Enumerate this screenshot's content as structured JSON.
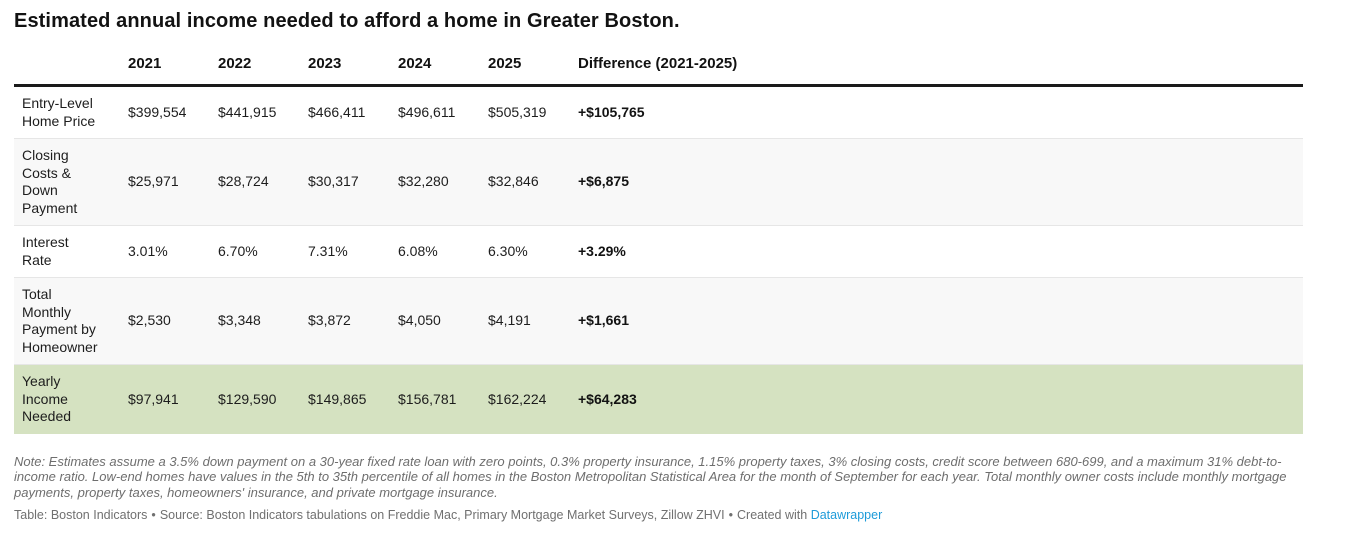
{
  "colors": {
    "highlight_green": "#d5e2c1",
    "row_alt_gray": "#f8f8f8",
    "header_rule_black": "#1a1a1a",
    "link_blue": "#1d9bd9",
    "note_gray": "#6e6e6e"
  },
  "chart_data": {
    "type": "table",
    "title": "Estimated annual income needed to afford a home in Greater Boston.",
    "columns": [
      "2021",
      "2022",
      "2023",
      "2024",
      "2025",
      "Difference (2021-2025)"
    ],
    "rows": [
      {
        "label": "Entry-Level Home Price",
        "values": [
          "$399,554",
          "$441,915",
          "$466,411",
          "$496,611",
          "$505,319",
          "+$105,765"
        ],
        "highlight": false
      },
      {
        "label": "Closing Costs & Down Payment",
        "values": [
          "$25,971",
          "$28,724",
          "$30,317",
          "$32,280",
          "$32,846",
          "+$6,875"
        ],
        "highlight": false
      },
      {
        "label": "Interest Rate",
        "values": [
          "3.01%",
          "6.70%",
          "7.31%",
          "6.08%",
          "6.30%",
          "+3.29%"
        ],
        "highlight": false
      },
      {
        "label": "Total Monthly Payment by Homeowner",
        "values": [
          "$2,530",
          "$3,348",
          "$3,872",
          "$4,050",
          "$4,191",
          "+$1,661"
        ],
        "highlight": false
      },
      {
        "label": "Yearly Income Needed",
        "values": [
          "$97,941",
          "$129,590",
          "$149,865",
          "$156,781",
          "$162,224",
          "+$64,283"
        ],
        "highlight": true
      }
    ]
  },
  "note": "Note: Estimates assume a 3.5% down payment on a 30-year fixed rate loan with zero points, 0.3% property insurance, 1.15% property taxes, 3% closing costs, credit score between 680-699, and a maximum 31% debt-to-income ratio. Low-end homes have values in the 5th to 35th percentile of all homes in the Boston Metropolitan Statistical Area for the month of September for each year. Total monthly owner costs include monthly mortgage payments, property taxes, homeowners' insurance, and private mortgage insurance.",
  "footer": {
    "credit": "Table: Boston Indicators",
    "separator": "•",
    "source": "Source: Boston Indicators tabulations on Freddie Mac, Primary Mortgage Market Surveys, Zillow ZHVI",
    "created_with": "Created with",
    "link_label": "Datawrapper"
  }
}
